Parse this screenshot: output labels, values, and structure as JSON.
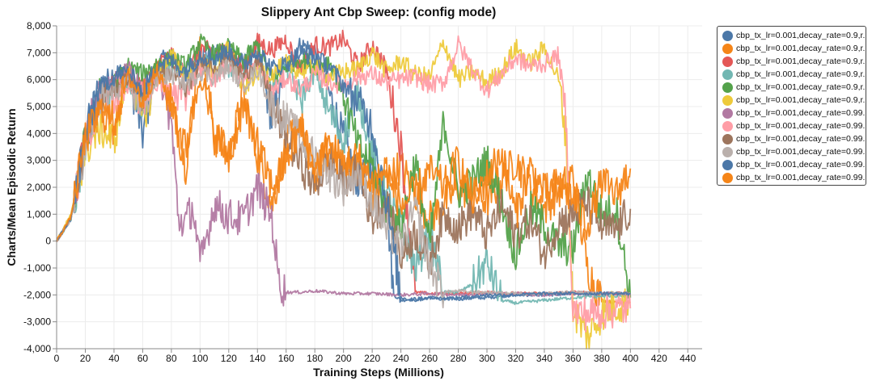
{
  "chart_data": {
    "type": "line",
    "title": "Slippery Ant Cbp Sweep: (config mode)",
    "xlabel": "Training Steps (Millions)",
    "ylabel": "Charts/Mean Episodic Return",
    "xlim": [
      0,
      450
    ],
    "ylim": [
      -4000,
      8000
    ],
    "x_ticks": [
      "0",
      "20",
      "40",
      "60",
      "80",
      "100",
      "120",
      "140",
      "160",
      "180",
      "200",
      "220",
      "240",
      "260",
      "280",
      "300",
      "320",
      "340",
      "360",
      "380",
      "400",
      "420",
      "440"
    ],
    "y_ticks": [
      "8,000",
      "7,000",
      "6,000",
      "5,000",
      "4,000",
      "3,000",
      "2,000",
      "1,000",
      "0",
      "-1,000",
      "-2,000",
      "-3,000",
      "-4,000"
    ],
    "grid": true,
    "legend_position": "right",
    "series": [
      {
        "name": "cbp_tx_lr=0.001,decay_rate=0.9,r...",
        "color": "#4c78a8",
        "x": [
          0,
          10,
          20,
          30,
          40,
          50,
          60,
          70,
          80,
          90,
          100,
          110,
          120,
          130,
          140,
          150,
          160,
          170,
          180,
          190,
          200,
          210,
          220,
          230,
          235,
          240,
          260,
          280,
          300,
          320,
          340,
          360,
          380,
          400
        ],
        "y": [
          0,
          800,
          4000,
          5800,
          6300,
          6300,
          3900,
          6700,
          6800,
          6300,
          7000,
          6900,
          7200,
          6600,
          7200,
          4500,
          6500,
          7300,
          7100,
          5500,
          3800,
          2200,
          2800,
          1500,
          -2000,
          -2200,
          -2100,
          -2150,
          -2100,
          -2000,
          -2000,
          -1950,
          -1950,
          -1950
        ]
      },
      {
        "name": "cbp_tx_lr=0.001,decay_rate=0.9,r...",
        "color": "#f58518",
        "x": [
          0,
          10,
          20,
          30,
          40,
          50,
          60,
          70,
          80,
          90,
          100,
          110,
          120,
          130,
          140,
          150,
          160,
          170,
          180,
          190,
          200,
          210,
          220,
          240,
          260,
          280,
          300,
          320,
          340,
          360,
          370,
          380,
          390,
          400
        ],
        "y": [
          0,
          900,
          3900,
          4900,
          4200,
          6400,
          5600,
          6600,
          5200,
          2800,
          7300,
          4100,
          3000,
          5500,
          3200,
          1300,
          3500,
          4500,
          2200,
          3800,
          2600,
          3000,
          1700,
          2800,
          800,
          2000,
          1500,
          3000,
          1200,
          2500,
          -1000,
          -2200,
          -2300,
          -2250
        ]
      },
      {
        "name": "cbp_tx_lr=0.001,decay_rate=0.9,r...",
        "color": "#e45756",
        "x": [
          0,
          10,
          20,
          30,
          40,
          50,
          60,
          70,
          80,
          90,
          100,
          110,
          120,
          130,
          140,
          150,
          160,
          170,
          180,
          190,
          200,
          210,
          220,
          230,
          240,
          250,
          260,
          270,
          280,
          300,
          320,
          340,
          360,
          380,
          400
        ],
        "y": [
          0,
          850,
          3700,
          5600,
          5800,
          6100,
          5800,
          6500,
          6900,
          6100,
          7200,
          7000,
          7100,
          6400,
          7400,
          7100,
          7500,
          6400,
          7300,
          7200,
          7500,
          6500,
          7300,
          6400,
          3500,
          -1900,
          -1950,
          -1950,
          -1950,
          -1900,
          -1950,
          -1950,
          -1900,
          -1950,
          -1950
        ]
      },
      {
        "name": "cbp_tx_lr=0.001,decay_rate=0.9,r...",
        "color": "#72b7b2",
        "x": [
          0,
          10,
          20,
          30,
          40,
          50,
          60,
          70,
          80,
          90,
          100,
          110,
          120,
          130,
          140,
          150,
          160,
          170,
          180,
          190,
          200,
          210,
          220,
          230,
          240,
          250,
          260,
          270,
          280,
          290,
          300,
          310,
          320,
          340,
          360,
          380,
          400
        ],
        "y": [
          0,
          800,
          3500,
          5200,
          5600,
          5900,
          5100,
          6300,
          6500,
          6200,
          6400,
          6900,
          6400,
          6000,
          6700,
          5800,
          6500,
          5200,
          6300,
          4800,
          3800,
          5600,
          3300,
          1700,
          600,
          -1000,
          300,
          -1900,
          -1900,
          -1600,
          -800,
          -2200,
          -2300,
          -2200,
          -2100,
          -2050,
          -2050
        ]
      },
      {
        "name": "cbp_tx_lr=0.001,decay_rate=0.9,r...",
        "color": "#54a24b",
        "x": [
          0,
          10,
          20,
          30,
          40,
          50,
          60,
          70,
          80,
          90,
          100,
          110,
          120,
          130,
          140,
          150,
          160,
          170,
          180,
          190,
          200,
          210,
          220,
          230,
          240,
          250,
          260,
          270,
          280,
          290,
          300,
          310,
          320,
          330,
          340,
          350,
          360,
          370,
          380,
          390,
          400
        ],
        "y": [
          0,
          850,
          3800,
          5500,
          5900,
          6500,
          6200,
          6600,
          6800,
          6500,
          7400,
          6900,
          7200,
          6700,
          7300,
          6000,
          6500,
          6800,
          6500,
          6700,
          5500,
          3500,
          2800,
          1200,
          500,
          3000,
          -200,
          4500,
          1800,
          2200,
          3000,
          1500,
          -500,
          1200,
          600,
          -200,
          -300,
          2500,
          1000,
          1200,
          -2100
        ]
      },
      {
        "name": "cbp_tx_lr=0.001,decay_rate=0.9,r...",
        "color": "#eeca3b",
        "x": [
          0,
          10,
          20,
          30,
          40,
          50,
          60,
          70,
          80,
          90,
          100,
          110,
          120,
          130,
          140,
          150,
          160,
          170,
          180,
          190,
          200,
          210,
          220,
          230,
          240,
          250,
          260,
          270,
          280,
          290,
          300,
          310,
          320,
          330,
          340,
          350,
          355,
          360,
          370,
          380,
          390,
          400
        ],
        "y": [
          0,
          1000,
          3300,
          4200,
          3700,
          6400,
          4600,
          6000,
          6900,
          6100,
          6600,
          6300,
          7300,
          5600,
          6300,
          6200,
          6600,
          6300,
          6500,
          6100,
          6300,
          6400,
          7000,
          6300,
          6700,
          6200,
          6100,
          7400,
          6000,
          6300,
          5900,
          6300,
          7200,
          6600,
          7200,
          6000,
          4000,
          -2500,
          -3600,
          -2700,
          -2400,
          -2300
        ]
      },
      {
        "name": "cbp_tx_lr=0.001,decay_rate=0.99...",
        "color": "#b279a2",
        "x": [
          0,
          10,
          20,
          30,
          40,
          50,
          60,
          70,
          80,
          85,
          90,
          95,
          100,
          110,
          120,
          130,
          140,
          150,
          155,
          160,
          170,
          180,
          190,
          200,
          220,
          240,
          260,
          280,
          300,
          320,
          340,
          360,
          380,
          400
        ],
        "y": [
          0,
          850,
          3900,
          5500,
          5900,
          6400,
          5600,
          6300,
          4400,
          800,
          700,
          1300,
          -900,
          1400,
          900,
          800,
          2000,
          900,
          -1500,
          -1900,
          -1900,
          -1850,
          -1900,
          -1950,
          -1950,
          -2000,
          -1950,
          -2000,
          -1950,
          -1950,
          -2000,
          -1950,
          -1950,
          -1950
        ]
      },
      {
        "name": "cbp_tx_lr=0.001,decay_rate=0.99...",
        "color": "#ff9da6",
        "x": [
          0,
          10,
          20,
          30,
          40,
          50,
          60,
          70,
          80,
          90,
          100,
          110,
          120,
          130,
          140,
          150,
          160,
          170,
          180,
          190,
          200,
          210,
          220,
          230,
          240,
          250,
          260,
          270,
          280,
          290,
          300,
          310,
          320,
          330,
          340,
          350,
          355,
          360,
          370,
          380,
          390,
          400
        ],
        "y": [
          0,
          800,
          3600,
          5300,
          5300,
          5700,
          5200,
          5900,
          5500,
          5500,
          6500,
          6000,
          6700,
          6000,
          6700,
          5500,
          6100,
          5600,
          6200,
          5900,
          5800,
          6100,
          6200,
          5900,
          6000,
          6100,
          5800,
          5900,
          7300,
          6400,
          5600,
          6200,
          6800,
          6500,
          6600,
          6900,
          4600,
          -2600,
          -2700,
          -2600,
          -2550,
          -2500
        ]
      },
      {
        "name": "cbp_tx_lr=0.001,decay_rate=0.99...",
        "color": "#9d755d",
        "x": [
          0,
          10,
          20,
          30,
          40,
          50,
          60,
          70,
          80,
          90,
          100,
          110,
          120,
          130,
          140,
          150,
          160,
          170,
          180,
          190,
          200,
          210,
          220,
          230,
          240,
          250,
          260,
          270,
          280,
          290,
          300,
          310,
          320,
          330,
          340,
          350,
          360,
          370,
          380,
          390,
          400
        ],
        "y": [
          0,
          850,
          3700,
          5400,
          5700,
          6000,
          5400,
          6200,
          6300,
          5600,
          6700,
          6500,
          6900,
          6100,
          6800,
          5100,
          3800,
          2900,
          2000,
          3000,
          2300,
          2600,
          800,
          1500,
          -600,
          300,
          -800,
          1000,
          500,
          1100,
          200,
          1300,
          300,
          800,
          -500,
          700,
          1000,
          1400,
          500,
          400,
          1200
        ]
      },
      {
        "name": "cbp_tx_lr=0.001,decay_rate=0.99...",
        "color": "#bab0ac",
        "x": [
          0,
          10,
          20,
          30,
          40,
          50,
          60,
          70,
          80,
          90,
          100,
          110,
          120,
          130,
          140,
          150,
          160,
          170,
          180,
          190,
          200,
          210,
          220,
          230,
          240,
          250,
          260,
          270,
          280,
          290,
          300,
          320,
          340,
          360,
          380,
          400
        ],
        "y": [
          0,
          800,
          3500,
          5200,
          5500,
          5800,
          5000,
          6000,
          6200,
          5800,
          6300,
          6100,
          6500,
          5800,
          6400,
          5000,
          4500,
          3800,
          3100,
          2500,
          2000,
          2600,
          1500,
          400,
          -200,
          1200,
          -900,
          -1900,
          -1850,
          -1900,
          -1900,
          -1950,
          -1950,
          -1900,
          -1950,
          -1950
        ]
      },
      {
        "name": "cbp_tx_lr=0.001,decay_rate=0.99...",
        "color": "#4c78a8",
        "x": [
          0,
          10,
          20,
          30,
          40,
          50,
          60,
          70,
          80,
          90,
          100,
          110,
          120,
          130,
          140,
          150,
          160,
          170,
          180,
          190,
          200,
          210,
          220,
          230,
          240,
          250,
          260,
          270,
          280,
          290,
          300,
          320,
          340,
          360,
          380,
          400
        ],
        "y": [
          0,
          850,
          3900,
          5700,
          6100,
          6300,
          5500,
          6600,
          6700,
          6300,
          6900,
          6800,
          7100,
          6500,
          7100,
          6400,
          6600,
          7000,
          6800,
          6500,
          5800,
          5200,
          4300,
          1500,
          -2100,
          -2200,
          -2100,
          -2150,
          -2100,
          -2050,
          -2000,
          -2000,
          -1950,
          -1950,
          -1950,
          -1950
        ]
      },
      {
        "name": "cbp_tx_lr=0.001,decay_rate=0.99...",
        "color": "#f58518",
        "x": [
          0,
          10,
          20,
          30,
          40,
          50,
          60,
          70,
          80,
          90,
          100,
          110,
          120,
          130,
          140,
          150,
          160,
          170,
          180,
          190,
          200,
          210,
          220,
          230,
          240,
          250,
          260,
          270,
          280,
          290,
          300,
          310,
          320,
          330,
          340,
          350,
          360,
          370,
          380,
          390,
          400
        ],
        "y": [
          0,
          900,
          3800,
          4800,
          4500,
          6100,
          5300,
          6300,
          5100,
          3400,
          6200,
          3900,
          3300,
          5000,
          3600,
          2000,
          3000,
          4200,
          2700,
          3500,
          2900,
          3100,
          2200,
          2700,
          1300,
          1800,
          2600,
          2000,
          3000,
          1500,
          2400,
          3300,
          1000,
          2700,
          1800,
          2100,
          1600,
          600,
          2200,
          1700,
          2700
        ]
      }
    ]
  }
}
